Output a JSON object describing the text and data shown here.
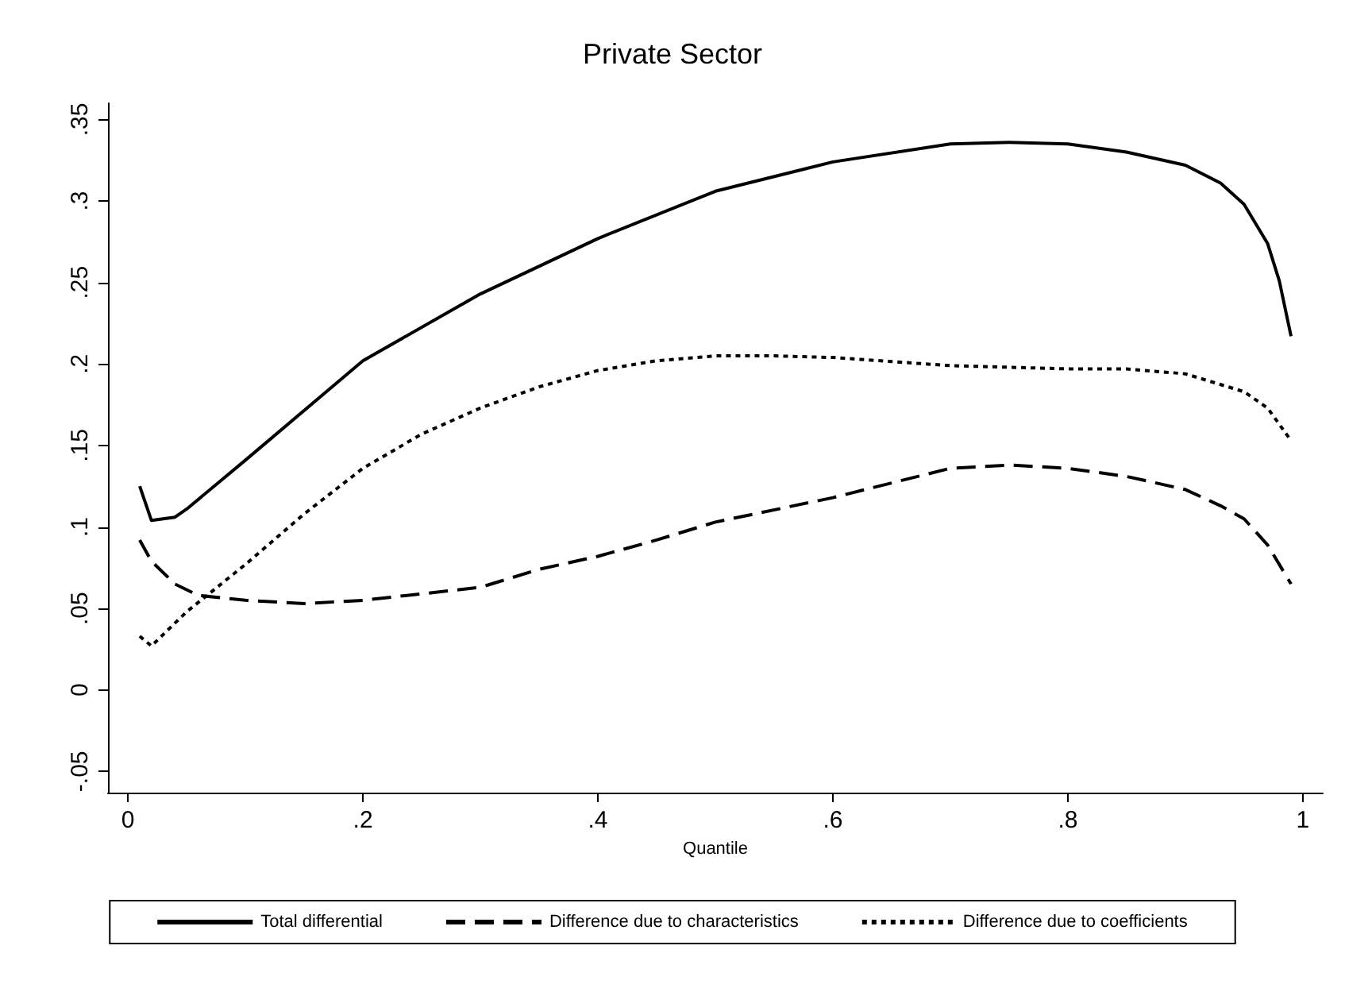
{
  "chart_data": {
    "type": "line",
    "title": "Private Sector",
    "xlabel": "Quantile",
    "xlim": [
      -0.017,
      1.017
    ],
    "ylim": [
      -0.063,
      0.36
    ],
    "xticks": [
      0,
      {
        "value": 0.2,
        "label": ".2"
      },
      {
        "value": 0.4,
        "label": ".4"
      },
      {
        "value": 0.6,
        "label": ".6"
      },
      {
        "value": 0.8,
        "label": ".8"
      },
      1
    ],
    "yticks": [
      {
        "value": -0.05,
        "label": "-.05"
      },
      0,
      {
        "value": 0.05,
        "label": ".05"
      },
      {
        "value": 0.1,
        "label": ".1"
      },
      {
        "value": 0.15,
        "label": ".15"
      },
      {
        "value": 0.2,
        "label": ".2"
      },
      {
        "value": 0.25,
        "label": ".25"
      },
      {
        "value": 0.3,
        "label": ".3"
      },
      {
        "value": 0.35,
        "label": ".35"
      }
    ],
    "grid": false,
    "legend": "bottom",
    "marker": "none",
    "series": [
      {
        "name": "Total differential",
        "color": "#000000",
        "line_style": "solid",
        "x": [
          0.01,
          0.02,
          0.04,
          0.05,
          0.1,
          0.2,
          0.3,
          0.4,
          0.5,
          0.6,
          0.7,
          0.75,
          0.8,
          0.85,
          0.9,
          0.93,
          0.95,
          0.97,
          0.98,
          0.99
        ],
        "values": [
          0.125,
          0.104,
          0.106,
          0.111,
          0.141,
          0.202,
          0.243,
          0.277,
          0.306,
          0.324,
          0.335,
          0.336,
          0.335,
          0.33,
          0.322,
          0.311,
          0.298,
          0.274,
          0.251,
          0.217
        ]
      },
      {
        "name": "Difference due to characteristics",
        "color": "#000000",
        "line_style": "dashed",
        "x": [
          0.01,
          0.02,
          0.04,
          0.06,
          0.1,
          0.15,
          0.2,
          0.3,
          0.35,
          0.4,
          0.45,
          0.5,
          0.6,
          0.7,
          0.75,
          0.8,
          0.85,
          0.9,
          0.93,
          0.95,
          0.97,
          0.99
        ],
        "values": [
          0.092,
          0.079,
          0.065,
          0.058,
          0.055,
          0.053,
          0.055,
          0.063,
          0.074,
          0.082,
          0.092,
          0.103,
          0.118,
          0.136,
          0.138,
          0.136,
          0.131,
          0.123,
          0.113,
          0.105,
          0.089,
          0.065
        ]
      },
      {
        "name": "Difference due to coefficients",
        "color": "#000000",
        "line_style": "dotted",
        "x": [
          0.01,
          0.02,
          0.05,
          0.1,
          0.15,
          0.2,
          0.25,
          0.3,
          0.35,
          0.4,
          0.45,
          0.5,
          0.55,
          0.6,
          0.7,
          0.8,
          0.85,
          0.9,
          0.95,
          0.97,
          0.99
        ],
        "values": [
          0.033,
          0.027,
          0.048,
          0.077,
          0.108,
          0.136,
          0.157,
          0.173,
          0.186,
          0.196,
          0.202,
          0.205,
          0.205,
          0.204,
          0.199,
          0.197,
          0.197,
          0.194,
          0.183,
          0.173,
          0.153
        ]
      }
    ]
  }
}
